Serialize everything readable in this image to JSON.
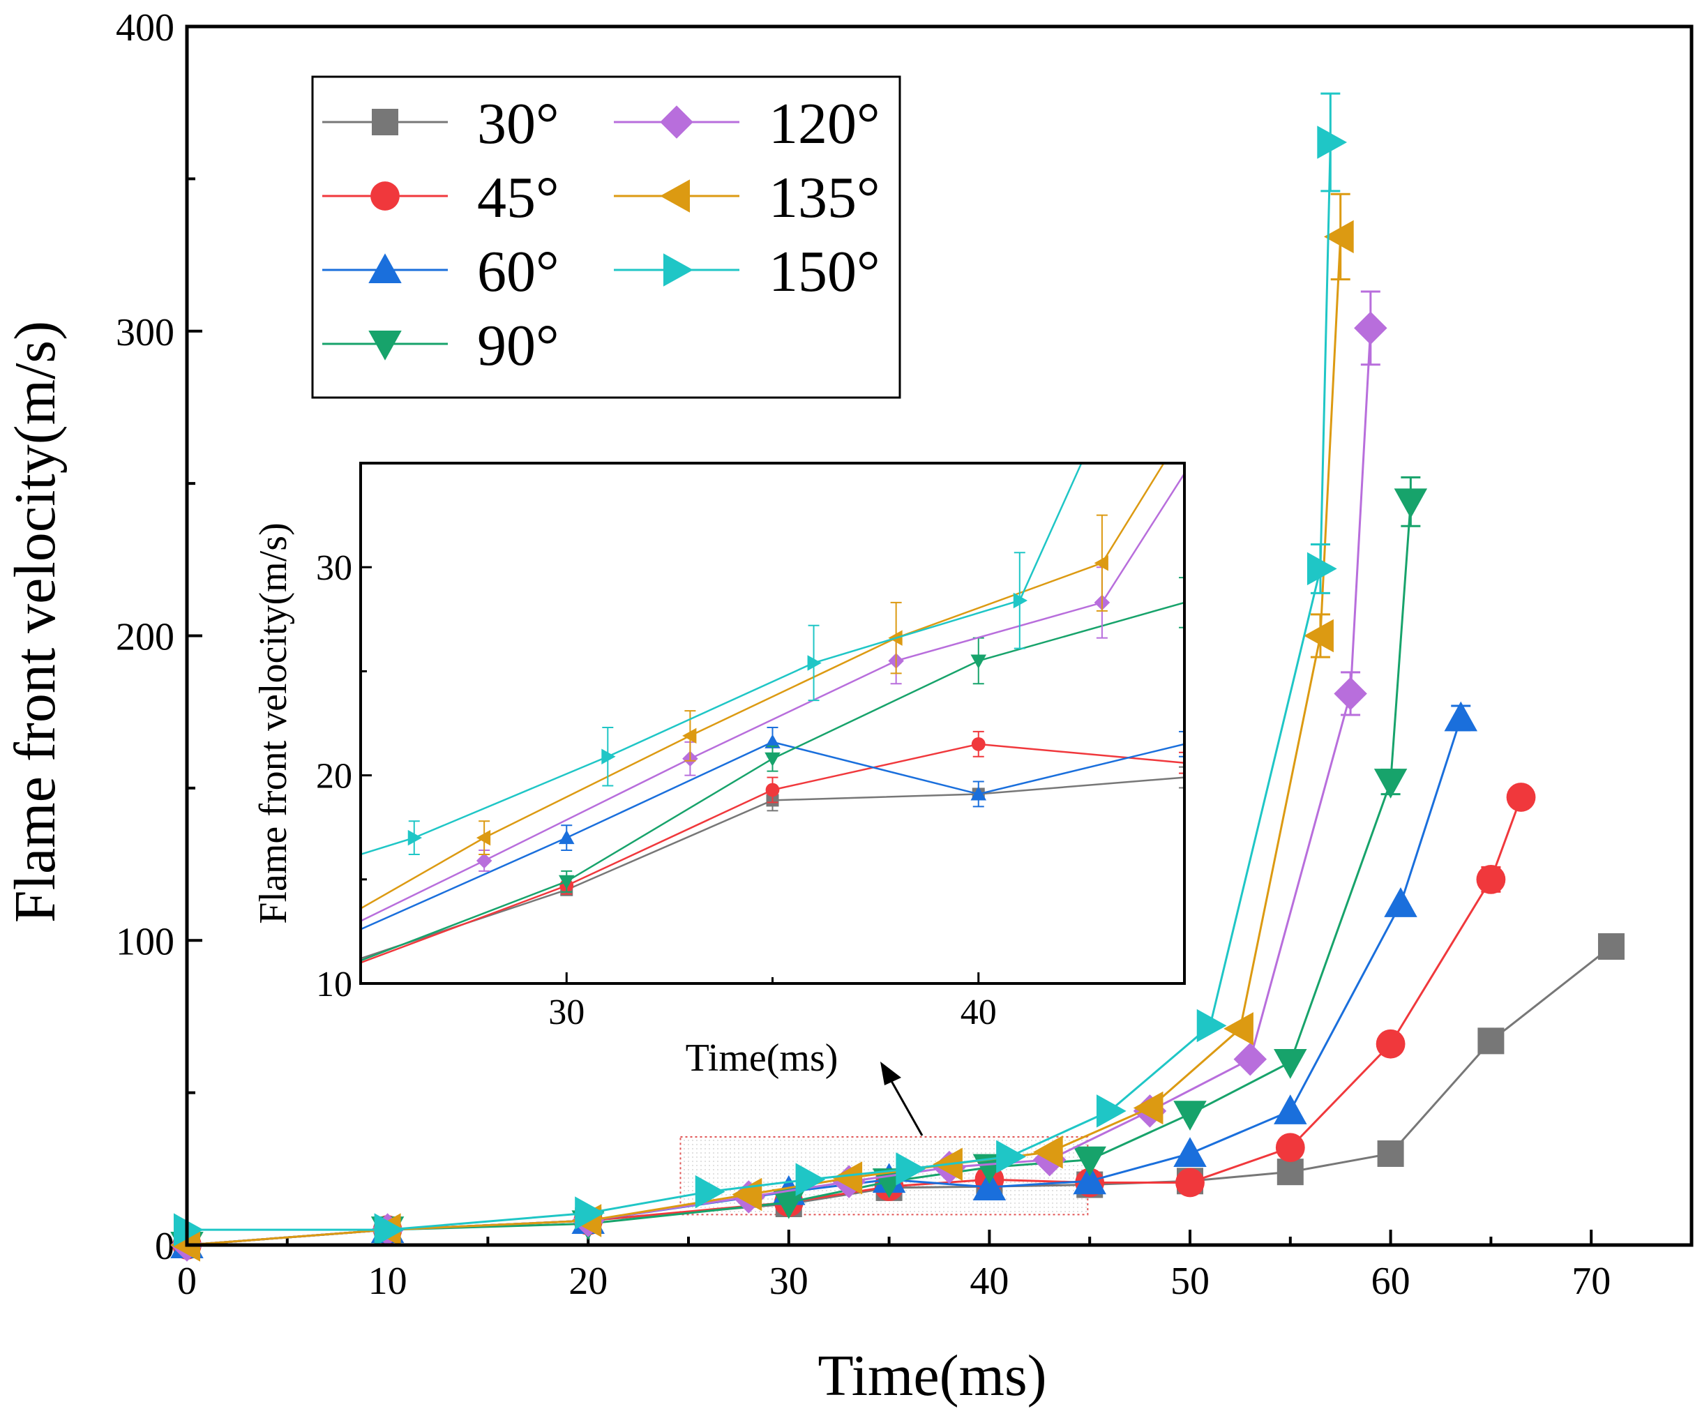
{
  "chart_data": [
    {
      "id": "main",
      "type": "line",
      "xlabel": "Time(ms)",
      "ylabel": "Flame front velocity(m/s)",
      "xlim": [
        0,
        75
      ],
      "ylim": [
        0,
        400
      ],
      "xticks": [
        0,
        10,
        20,
        30,
        40,
        50,
        60,
        70
      ],
      "yticks": [
        0,
        100,
        200,
        300,
        400
      ],
      "xtick_labels": [
        "0",
        "10",
        "20",
        "30",
        "40",
        "50",
        "60",
        "70"
      ],
      "ytick_labels": [
        "0",
        "100",
        "200",
        "300",
        "400"
      ],
      "legend_position": "top-left",
      "series": [
        {
          "name": "30°",
          "color": "#777777",
          "marker": "square",
          "x": [
            0,
            10,
            20,
            30,
            35,
            40,
            45,
            50,
            55,
            60,
            65,
            71
          ],
          "y": [
            0,
            5,
            8,
            13.5,
            18.8,
            19.2,
            19.8,
            21,
            24,
            30,
            67,
            98
          ]
        },
        {
          "name": "45°",
          "color": "#f0383c",
          "marker": "circle",
          "x": [
            0,
            10,
            20,
            30,
            35,
            40,
            45,
            50,
            55,
            60,
            65,
            66.5
          ],
          "y": [
            0,
            5,
            8,
            14,
            19.2,
            21.5,
            20.5,
            20.5,
            32,
            66,
            120,
            147
          ]
        },
        {
          "name": "60°",
          "color": "#1a6fdc",
          "marker": "triangle-up",
          "x": [
            0,
            10,
            20,
            30,
            35,
            40,
            45,
            50,
            55,
            60.5,
            63.5
          ],
          "y": [
            0,
            5,
            8,
            17.5,
            21.5,
            19,
            21,
            30,
            44,
            112,
            173
          ]
        },
        {
          "name": "90°",
          "color": "#17a36b",
          "marker": "triangle-down",
          "x": [
            0,
            10,
            20,
            30,
            35,
            40,
            45,
            50,
            55,
            60,
            61
          ],
          "y": [
            0,
            5,
            7,
            14,
            20.8,
            25.5,
            28,
            43,
            60,
            152,
            244
          ]
        },
        {
          "name": "120°",
          "color": "#b86edc",
          "marker": "diamond",
          "x": [
            0,
            10,
            20,
            28,
            33,
            38,
            43,
            48,
            53,
            58,
            59
          ],
          "y": [
            0,
            5,
            8,
            15.8,
            20.8,
            25.5,
            28,
            44,
            61,
            181,
            301
          ]
        },
        {
          "name": "135°",
          "color": "#dc9a12",
          "marker": "triangle-left",
          "x": [
            0,
            10,
            20,
            28,
            33,
            38,
            43,
            48,
            52.5,
            56.5,
            57.5
          ],
          "y": [
            0,
            5,
            8,
            16.6,
            22,
            26.5,
            30.5,
            45,
            71,
            200,
            331
          ]
        },
        {
          "name": "150°",
          "color": "#1fc6c6",
          "marker": "triangle-right",
          "x": [
            0,
            10,
            20,
            26,
            31,
            36,
            41,
            46,
            51,
            56.5,
            57
          ],
          "y": [
            5,
            5,
            10.5,
            17.5,
            21.5,
            25,
            29,
            44,
            72,
            222,
            362
          ]
        }
      ],
      "error_bars": {
        "150°": [
          0,
          0,
          0,
          0,
          0,
          0,
          0,
          0,
          0,
          8,
          16
        ],
        "135°": [
          0,
          0,
          0,
          0,
          0,
          0,
          0,
          0,
          0,
          7,
          14
        ],
        "120°": [
          0,
          0,
          0,
          0,
          0,
          0,
          0,
          0,
          0,
          7,
          12
        ],
        "90°": [
          0,
          0,
          0,
          0,
          0,
          0,
          0,
          0,
          0,
          4,
          8
        ],
        "60°": [
          0,
          0,
          0,
          0,
          0,
          0,
          0,
          0,
          0,
          0,
          4
        ],
        "45°": [
          0,
          0,
          0,
          0,
          0,
          0,
          0,
          0,
          0,
          0,
          4
        ]
      }
    },
    {
      "id": "inset",
      "type": "line",
      "xlabel": "Time(ms)",
      "ylabel": "Flame front velocity(m/s)",
      "xlim": [
        25,
        45
      ],
      "ylim": [
        10,
        35
      ],
      "xticks": [
        30,
        40
      ],
      "yticks": [
        10,
        20,
        30
      ],
      "xtick_labels": [
        "30",
        "40"
      ],
      "ytick_labels": [
        "10",
        "20",
        "30"
      ],
      "series": [
        {
          "name": "30°",
          "color": "#777777",
          "x": [
            25,
            30,
            35,
            40,
            45
          ],
          "y": [
            11.2,
            14.5,
            18.8,
            19.1,
            19.9
          ],
          "err": [
            0,
            0,
            0.5,
            0,
            0.5
          ]
        },
        {
          "name": "45°",
          "color": "#f0383c",
          "x": [
            25,
            30,
            35,
            40,
            45
          ],
          "y": [
            11.0,
            14.7,
            19.3,
            21.5,
            20.6
          ],
          "err": [
            0,
            0.4,
            0.6,
            0.6,
            0.5
          ]
        },
        {
          "name": "60°",
          "color": "#1a6fdc",
          "x": [
            25,
            30,
            35,
            40,
            45
          ],
          "y": [
            12.6,
            17.0,
            21.6,
            19.1,
            21.5
          ],
          "err": [
            0,
            0.6,
            0.7,
            0.6,
            0.6
          ]
        },
        {
          "name": "90°",
          "color": "#17a36b",
          "x": [
            25,
            30,
            35,
            40,
            45
          ],
          "y": [
            11.1,
            14.9,
            20.8,
            25.5,
            28.3
          ],
          "err": [
            0,
            0.5,
            0.6,
            1.1,
            1.2
          ]
        },
        {
          "name": "120°",
          "color": "#b86edc",
          "x": [
            25,
            28,
            33,
            38,
            43,
            45
          ],
          "y": [
            13.0,
            15.9,
            20.8,
            25.5,
            28.3,
            34.5
          ],
          "err": [
            0,
            0.5,
            0.8,
            1.1,
            1.7,
            0
          ]
        },
        {
          "name": "135°",
          "color": "#dc9a12",
          "x": [
            25,
            28,
            33,
            38,
            43,
            44.5
          ],
          "y": [
            13.6,
            17.0,
            21.9,
            26.6,
            30.2,
            35
          ],
          "err": [
            0,
            0.8,
            1.2,
            1.7,
            2.3,
            0
          ]
        },
        {
          "name": "150°",
          "color": "#1fc6c6",
          "x": [
            25,
            26.3,
            31,
            36,
            41,
            42.5
          ],
          "y": [
            16.2,
            17.0,
            20.9,
            25.4,
            28.4,
            35
          ],
          "err": [
            0,
            0.8,
            1.4,
            1.8,
            2.3,
            0
          ]
        }
      ]
    }
  ],
  "colors": {
    "frame": "#000000",
    "highlight_box": "#e05555"
  }
}
